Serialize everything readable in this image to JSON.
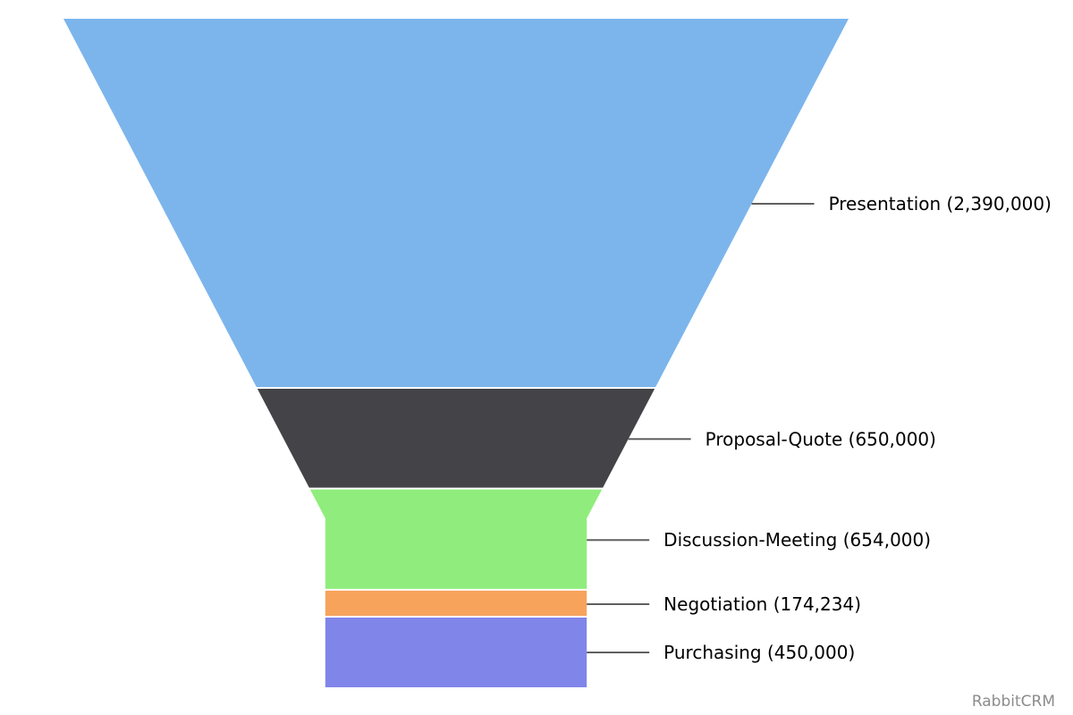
{
  "chart_data": {
    "type": "funnel",
    "series": [
      {
        "points": [
          {
            "name": "Presentation",
            "value": 2390000,
            "label": "Presentation (2,390,000)",
            "color": "#7cb5ec"
          },
          {
            "name": "Proposal-Quote",
            "value": 650000,
            "label": "Proposal-Quote (650,000)",
            "color": "#434348"
          },
          {
            "name": "Discussion-Meeting",
            "value": 654000,
            "label": "Discussion-Meeting (654,000)",
            "color": "#90ed7d"
          },
          {
            "name": "Negotiation",
            "value": 174234,
            "label": "Negotiation (174,234)",
            "color": "#f7a35c"
          },
          {
            "name": "Purchasing",
            "value": 450000,
            "label": "Purchasing (450,000)",
            "color": "#8085e9"
          }
        ]
      }
    ],
    "neck_width_fraction": 0.333,
    "credit": "RabbitCRM"
  }
}
